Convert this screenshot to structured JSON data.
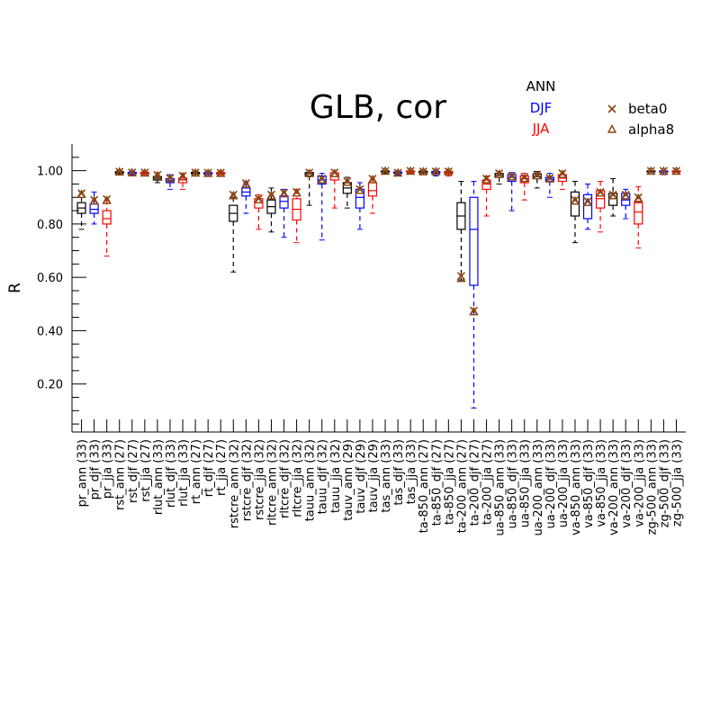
{
  "chart_data": {
    "type": "boxplot",
    "title": "GLB, cor",
    "xlabel": "",
    "ylabel": "R",
    "ylim": [
      0.02,
      1.1
    ],
    "yticks": [
      0.2,
      0.4,
      0.6,
      0.8,
      1.0
    ],
    "ytick_labels": [
      "0.20",
      "0.40",
      "0.60",
      "0.80",
      "1.00"
    ],
    "grid": false,
    "legend": {
      "placement": "top-right",
      "season_entries": [
        {
          "label": "ANN",
          "color": "#000000"
        },
        {
          "label": "DJF",
          "color": "#0000ff"
        },
        {
          "label": "JJA",
          "color": "#ff0000"
        }
      ],
      "marker_entries": [
        {
          "label": "beta0",
          "marker": "x",
          "color": "#8b4513"
        },
        {
          "label": "alpha8",
          "marker": "triangle",
          "color": "#8b4513"
        }
      ]
    },
    "categories": [
      {
        "label": "pr_ann (33)",
        "season": "ann",
        "box": [
          0.78,
          0.84,
          0.86,
          0.88,
          0.9
        ],
        "beta0": 0.915,
        "alpha8": 0.91
      },
      {
        "label": "pr_djf (33)",
        "season": "djf",
        "box": [
          0.8,
          0.84,
          0.855,
          0.875,
          0.92
        ],
        "beta0": 0.89,
        "alpha8": 0.885
      },
      {
        "label": "pr_jja (33)",
        "season": "jja",
        "box": [
          0.68,
          0.8,
          0.82,
          0.85,
          0.89
        ],
        "beta0": 0.893,
        "alpha8": 0.887
      },
      {
        "label": "rst_ann (27)",
        "season": "ann",
        "box": [
          0.985,
          0.99,
          0.993,
          0.996,
          1.0
        ],
        "beta0": 0.996,
        "alpha8": 0.994
      },
      {
        "label": "rst_djf (27)",
        "season": "djf",
        "box": [
          0.983,
          0.988,
          0.991,
          0.994,
          0.997
        ],
        "beta0": 0.993,
        "alpha8": 0.991
      },
      {
        "label": "rst_jja (27)",
        "season": "jja",
        "box": [
          0.982,
          0.988,
          0.99,
          0.994,
          0.997
        ],
        "beta0": 0.993,
        "alpha8": 0.99
      },
      {
        "label": "rlut_ann (33)",
        "season": "ann",
        "box": [
          0.955,
          0.965,
          0.972,
          0.978,
          0.99
        ],
        "beta0": 0.984,
        "alpha8": 0.98
      },
      {
        "label": "rlut_djf (33)",
        "season": "djf",
        "box": [
          0.93,
          0.955,
          0.962,
          0.97,
          0.985
        ],
        "beta0": 0.972,
        "alpha8": 0.968
      },
      {
        "label": "rlut_jja (33)",
        "season": "jja",
        "box": [
          0.93,
          0.955,
          0.965,
          0.972,
          0.99
        ],
        "beta0": 0.981,
        "alpha8": 0.976
      },
      {
        "label": "rt_ann (27)",
        "season": "ann",
        "box": [
          0.98,
          0.988,
          0.991,
          0.994,
          0.997
        ],
        "beta0": 0.993,
        "alpha8": 0.99
      },
      {
        "label": "rt_djf (27)",
        "season": "djf",
        "box": [
          0.98,
          0.987,
          0.99,
          0.993,
          0.997
        ],
        "beta0": 0.992,
        "alpha8": 0.989
      },
      {
        "label": "rt_jja (27)",
        "season": "jja",
        "box": [
          0.98,
          0.987,
          0.99,
          0.993,
          0.997
        ],
        "beta0": 0.992,
        "alpha8": 0.989
      },
      {
        "label": "rstcre_ann (32)",
        "season": "ann",
        "box": [
          0.62,
          0.81,
          0.84,
          0.87,
          0.9
        ],
        "beta0": 0.91,
        "alpha8": 0.905
      },
      {
        "label": "rstcre_djf (32)",
        "season": "djf",
        "box": [
          0.84,
          0.905,
          0.92,
          0.935,
          0.955
        ],
        "beta0": 0.953,
        "alpha8": 0.948
      },
      {
        "label": "rstcre_jja (32)",
        "season": "jja",
        "box": [
          0.78,
          0.86,
          0.88,
          0.895,
          0.91
        ],
        "beta0": 0.895,
        "alpha8": 0.89
      },
      {
        "label": "rltcre_ann (32)",
        "season": "ann",
        "box": [
          0.77,
          0.84,
          0.865,
          0.89,
          0.935
        ],
        "beta0": 0.91,
        "alpha8": 0.905
      },
      {
        "label": "rltcre_djf (32)",
        "season": "djf",
        "box": [
          0.75,
          0.86,
          0.885,
          0.905,
          0.93
        ],
        "beta0": 0.917,
        "alpha8": 0.912
      },
      {
        "label": "rltcre_jja (32)",
        "season": "jja",
        "box": [
          0.73,
          0.815,
          0.855,
          0.895,
          0.93
        ],
        "beta0": 0.92,
        "alpha8": 0.915
      },
      {
        "label": "tauu_ann (32)",
        "season": "ann",
        "box": [
          0.87,
          0.98,
          0.988,
          0.993,
          1.0
        ],
        "beta0": 0.993,
        "alpha8": 0.988
      },
      {
        "label": "tauu_djf (32)",
        "season": "djf",
        "box": [
          0.74,
          0.95,
          0.965,
          0.98,
          0.99
        ],
        "beta0": 0.97,
        "alpha8": 0.965
      },
      {
        "label": "tauu_jja (32)",
        "season": "jja",
        "box": [
          0.86,
          0.965,
          0.978,
          0.992,
          1.0
        ],
        "beta0": 0.993,
        "alpha8": 0.988
      },
      {
        "label": "tauv_ann (29)",
        "season": "ann",
        "box": [
          0.86,
          0.915,
          0.935,
          0.955,
          0.975
        ],
        "beta0": 0.96,
        "alpha8": 0.955
      },
      {
        "label": "tauv_djf (29)",
        "season": "djf",
        "box": [
          0.78,
          0.86,
          0.9,
          0.93,
          0.955
        ],
        "beta0": 0.93,
        "alpha8": 0.925
      },
      {
        "label": "tauv_jja (29)",
        "season": "jja",
        "box": [
          0.84,
          0.905,
          0.925,
          0.955,
          0.975
        ],
        "beta0": 0.97,
        "alpha8": 0.965
      },
      {
        "label": "tas_ann (33)",
        "season": "ann",
        "box": [
          0.99,
          0.995,
          0.997,
          0.999,
          1.0
        ],
        "beta0": 0.999,
        "alpha8": 0.997
      },
      {
        "label": "tas_djf (33)",
        "season": "djf",
        "box": [
          0.983,
          0.99,
          0.992,
          0.995,
          0.998
        ],
        "beta0": 0.992,
        "alpha8": 0.99
      },
      {
        "label": "tas_jja (33)",
        "season": "jja",
        "box": [
          0.99,
          0.995,
          0.997,
          0.999,
          1.0
        ],
        "beta0": 0.999,
        "alpha8": 0.997
      },
      {
        "label": "ta-850_ann (27)",
        "season": "ann",
        "box": [
          0.985,
          0.992,
          0.995,
          0.998,
          1.0
        ],
        "beta0": 0.997,
        "alpha8": 0.995
      },
      {
        "label": "ta-850_djf (27)",
        "season": "djf",
        "box": [
          0.98,
          0.99,
          0.994,
          0.997,
          1.0
        ],
        "beta0": 0.997,
        "alpha8": 0.995
      },
      {
        "label": "ta-850_jja (27)",
        "season": "jja",
        "box": [
          0.98,
          0.99,
          0.994,
          0.997,
          1.0
        ],
        "beta0": 0.997,
        "alpha8": 0.995
      },
      {
        "label": "ta-200_ann (27)",
        "season": "ann",
        "box": [
          0.59,
          0.78,
          0.83,
          0.88,
          0.96
        ],
        "beta0": 0.605,
        "alpha8": 0.595
      },
      {
        "label": "ta-200_djf (27)",
        "season": "djf",
        "box": [
          0.11,
          0.57,
          0.78,
          0.9,
          0.96
        ],
        "beta0": 0.475,
        "alpha8": 0.47
      },
      {
        "label": "ta-200_jja (27)",
        "season": "jja",
        "box": [
          0.83,
          0.93,
          0.95,
          0.965,
          0.98
        ],
        "beta0": 0.97,
        "alpha8": 0.965
      },
      {
        "label": "ua-850_ann (33)",
        "season": "ann",
        "box": [
          0.95,
          0.975,
          0.982,
          0.99,
          0.997
        ],
        "beta0": 0.99,
        "alpha8": 0.985
      },
      {
        "label": "ua-850_djf (33)",
        "season": "djf",
        "box": [
          0.85,
          0.96,
          0.975,
          0.985,
          0.993
        ],
        "beta0": 0.98,
        "alpha8": 0.976
      },
      {
        "label": "ua-850_jja (33)",
        "season": "jja",
        "box": [
          0.89,
          0.955,
          0.97,
          0.98,
          0.99
        ],
        "beta0": 0.975,
        "alpha8": 0.97
      },
      {
        "label": "ua-200_ann (33)",
        "season": "ann",
        "box": [
          0.935,
          0.97,
          0.978,
          0.988,
          0.997
        ],
        "beta0": 0.985,
        "alpha8": 0.98
      },
      {
        "label": "ua-200_djf (33)",
        "season": "djf",
        "box": [
          0.9,
          0.96,
          0.968,
          0.975,
          0.99
        ],
        "beta0": 0.973,
        "alpha8": 0.968
      },
      {
        "label": "ua-200_jja (33)",
        "season": "jja",
        "box": [
          0.93,
          0.96,
          0.972,
          0.985,
          0.997
        ],
        "beta0": 0.99,
        "alpha8": 0.985
      },
      {
        "label": "va-850_ann (33)",
        "season": "ann",
        "box": [
          0.73,
          0.83,
          0.875,
          0.92,
          0.96
        ],
        "beta0": 0.89,
        "alpha8": 0.885
      },
      {
        "label": "va-850_djf (33)",
        "season": "djf",
        "box": [
          0.78,
          0.82,
          0.87,
          0.91,
          0.95
        ],
        "beta0": 0.885,
        "alpha8": 0.88
      },
      {
        "label": "va-850_jja (33)",
        "season": "jja",
        "box": [
          0.77,
          0.86,
          0.895,
          0.925,
          0.96
        ],
        "beta0": 0.92,
        "alpha8": 0.915
      },
      {
        "label": "va-200_ann (33)",
        "season": "ann",
        "box": [
          0.83,
          0.87,
          0.895,
          0.915,
          0.97
        ],
        "beta0": 0.91,
        "alpha8": 0.905
      },
      {
        "label": "va-200_djf (33)",
        "season": "djf",
        "box": [
          0.82,
          0.87,
          0.89,
          0.915,
          0.93
        ],
        "beta0": 0.91,
        "alpha8": 0.905
      },
      {
        "label": "va-200_jja (33)",
        "season": "jja",
        "box": [
          0.71,
          0.8,
          0.845,
          0.88,
          0.94
        ],
        "beta0": 0.9,
        "alpha8": 0.895
      },
      {
        "label": "zg-500_ann (33)",
        "season": "ann",
        "box": [
          0.993,
          0.997,
          0.998,
          0.999,
          1.0
        ],
        "beta0": 0.999,
        "alpha8": 0.997
      },
      {
        "label": "zg-500_djf (33)",
        "season": "djf",
        "box": [
          0.985,
          0.995,
          0.997,
          0.999,
          1.0
        ],
        "beta0": 0.999,
        "alpha8": 0.997
      },
      {
        "label": "zg-500_jja (33)",
        "season": "jja",
        "box": [
          0.993,
          0.997,
          0.998,
          0.999,
          1.0
        ],
        "beta0": 0.999,
        "alpha8": 0.997
      }
    ]
  }
}
